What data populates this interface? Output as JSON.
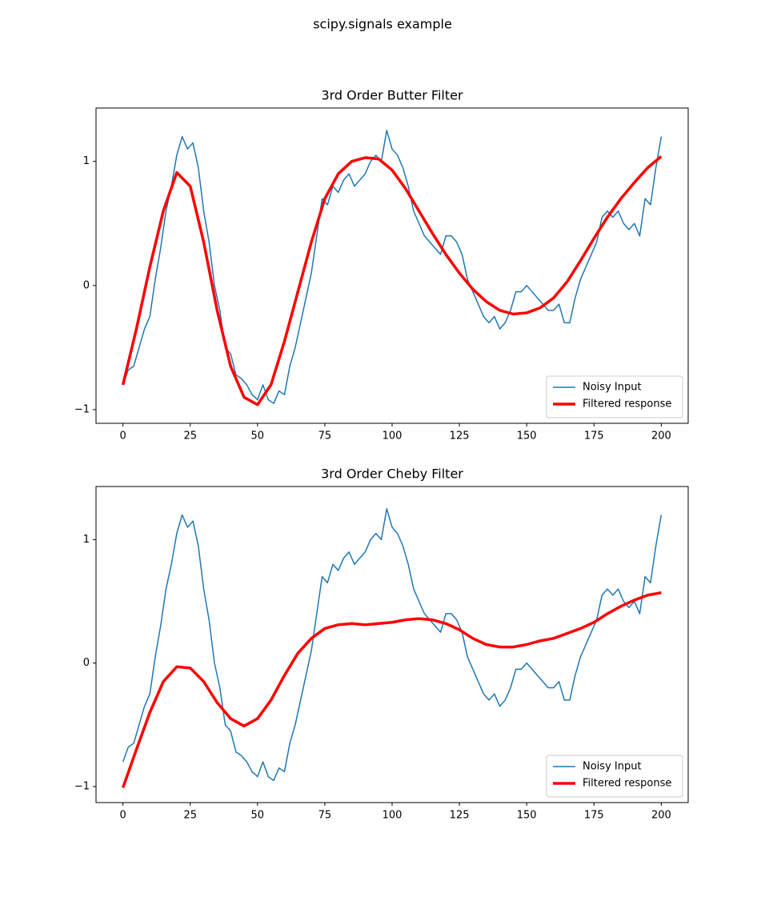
{
  "title": "scipy.signals example",
  "chart_data": [
    {
      "type": "line",
      "title": "3rd Order Butter Filter",
      "legend": "lower right",
      "xlim": [
        -10,
        210
      ],
      "ylim": [
        -1.11,
        1.43
      ],
      "xticks": [
        0,
        25,
        50,
        75,
        100,
        125,
        150,
        175,
        200
      ],
      "yticks": [
        {
          "value": -1,
          "label": "−1"
        },
        0,
        1
      ],
      "series": [
        {
          "name": "Noisy Input",
          "color": "#1f77b4",
          "width": 1.5,
          "x": [
            0,
            2,
            4,
            6,
            8,
            10,
            12,
            14,
            16,
            18,
            20,
            22,
            24,
            26,
            28,
            30,
            32,
            34,
            36,
            38,
            40,
            42,
            44,
            46,
            48,
            50,
            52,
            54,
            56,
            58,
            60,
            62,
            64,
            66,
            68,
            70,
            72,
            74,
            76,
            78,
            80,
            82,
            84,
            86,
            88,
            90,
            92,
            94,
            96,
            98,
            100,
            102,
            104,
            106,
            108,
            110,
            112,
            114,
            116,
            118,
            120,
            122,
            124,
            126,
            128,
            130,
            132,
            134,
            136,
            138,
            140,
            142,
            144,
            146,
            148,
            150,
            152,
            154,
            156,
            158,
            160,
            162,
            164,
            166,
            168,
            170,
            172,
            174,
            176,
            178,
            180,
            182,
            184,
            186,
            188,
            190,
            192,
            194,
            196,
            198,
            200
          ],
          "values": [
            -0.8,
            -0.68,
            -0.65,
            -0.5,
            -0.35,
            -0.25,
            0.05,
            0.3,
            0.6,
            0.8,
            1.05,
            1.2,
            1.1,
            1.15,
            0.95,
            0.6,
            0.35,
            0.0,
            -0.2,
            -0.5,
            -0.55,
            -0.72,
            -0.75,
            -0.8,
            -0.88,
            -0.92,
            -0.8,
            -0.92,
            -0.95,
            -0.85,
            -0.88,
            -0.65,
            -0.5,
            -0.3,
            -0.1,
            0.1,
            0.4,
            0.7,
            0.65,
            0.8,
            0.75,
            0.85,
            0.9,
            0.8,
            0.85,
            0.9,
            1.0,
            1.05,
            1.0,
            1.25,
            1.1,
            1.05,
            0.95,
            0.8,
            0.6,
            0.5,
            0.4,
            0.35,
            0.3,
            0.25,
            0.4,
            0.4,
            0.35,
            0.25,
            0.05,
            -0.05,
            -0.15,
            -0.25,
            -0.3,
            -0.25,
            -0.35,
            -0.3,
            -0.2,
            -0.05,
            -0.05,
            0.0,
            -0.05,
            -0.1,
            -0.15,
            -0.2,
            -0.2,
            -0.15,
            -0.3,
            -0.3,
            -0.1,
            0.05,
            0.15,
            0.25,
            0.35,
            0.55,
            0.6,
            0.55,
            0.6,
            0.5,
            0.45,
            0.5,
            0.4,
            0.7,
            0.65,
            0.95,
            1.2
          ]
        },
        {
          "name": "Filtered response",
          "color": "#ff0000",
          "width": 3.5,
          "x": [
            0,
            5,
            10,
            15,
            20,
            25,
            30,
            35,
            40,
            45,
            50,
            55,
            60,
            65,
            70,
            75,
            80,
            85,
            90,
            95,
            100,
            105,
            110,
            115,
            120,
            125,
            130,
            135,
            140,
            145,
            150,
            155,
            160,
            165,
            170,
            175,
            180,
            185,
            190,
            195,
            200
          ],
          "values": [
            -0.8,
            -0.35,
            0.15,
            0.6,
            0.91,
            0.8,
            0.35,
            -0.2,
            -0.65,
            -0.9,
            -0.96,
            -0.8,
            -0.45,
            -0.05,
            0.35,
            0.7,
            0.9,
            1.0,
            1.03,
            1.02,
            0.93,
            0.78,
            0.6,
            0.42,
            0.25,
            0.1,
            -0.03,
            -0.13,
            -0.2,
            -0.23,
            -0.22,
            -0.18,
            -0.1,
            0.03,
            0.2,
            0.38,
            0.55,
            0.7,
            0.83,
            0.95,
            1.04
          ]
        }
      ]
    },
    {
      "type": "line",
      "title": "3rd Order Cheby Filter",
      "legend": "lower right",
      "xlim": [
        -10,
        210
      ],
      "ylim": [
        -1.13,
        1.43
      ],
      "xticks": [
        0,
        25,
        50,
        75,
        100,
        125,
        150,
        175,
        200
      ],
      "yticks": [
        {
          "value": -1,
          "label": "−1"
        },
        0,
        1
      ],
      "series": [
        {
          "name": "Noisy Input",
          "color": "#1f77b4",
          "width": 1.5,
          "x": [
            0,
            2,
            4,
            6,
            8,
            10,
            12,
            14,
            16,
            18,
            20,
            22,
            24,
            26,
            28,
            30,
            32,
            34,
            36,
            38,
            40,
            42,
            44,
            46,
            48,
            50,
            52,
            54,
            56,
            58,
            60,
            62,
            64,
            66,
            68,
            70,
            72,
            74,
            76,
            78,
            80,
            82,
            84,
            86,
            88,
            90,
            92,
            94,
            96,
            98,
            100,
            102,
            104,
            106,
            108,
            110,
            112,
            114,
            116,
            118,
            120,
            122,
            124,
            126,
            128,
            130,
            132,
            134,
            136,
            138,
            140,
            142,
            144,
            146,
            148,
            150,
            152,
            154,
            156,
            158,
            160,
            162,
            164,
            166,
            168,
            170,
            172,
            174,
            176,
            178,
            180,
            182,
            184,
            186,
            188,
            190,
            192,
            194,
            196,
            198,
            200
          ],
          "values": [
            -0.8,
            -0.68,
            -0.65,
            -0.5,
            -0.35,
            -0.25,
            0.05,
            0.3,
            0.6,
            0.8,
            1.05,
            1.2,
            1.1,
            1.15,
            0.95,
            0.6,
            0.35,
            0.0,
            -0.2,
            -0.5,
            -0.55,
            -0.72,
            -0.75,
            -0.8,
            -0.88,
            -0.92,
            -0.8,
            -0.92,
            -0.95,
            -0.85,
            -0.88,
            -0.65,
            -0.5,
            -0.3,
            -0.1,
            0.1,
            0.4,
            0.7,
            0.65,
            0.8,
            0.75,
            0.85,
            0.9,
            0.8,
            0.85,
            0.9,
            1.0,
            1.05,
            1.0,
            1.25,
            1.1,
            1.05,
            0.95,
            0.8,
            0.6,
            0.5,
            0.4,
            0.35,
            0.3,
            0.25,
            0.4,
            0.4,
            0.35,
            0.25,
            0.05,
            -0.05,
            -0.15,
            -0.25,
            -0.3,
            -0.25,
            -0.35,
            -0.3,
            -0.2,
            -0.05,
            -0.05,
            0.0,
            -0.05,
            -0.1,
            -0.15,
            -0.2,
            -0.2,
            -0.15,
            -0.3,
            -0.3,
            -0.1,
            0.05,
            0.15,
            0.25,
            0.35,
            0.55,
            0.6,
            0.55,
            0.6,
            0.5,
            0.45,
            0.5,
            0.4,
            0.7,
            0.65,
            0.95,
            1.2
          ]
        },
        {
          "name": "Filtered response",
          "color": "#ff0000",
          "width": 3.5,
          "x": [
            0,
            5,
            10,
            15,
            20,
            25,
            30,
            35,
            40,
            45,
            50,
            55,
            60,
            65,
            70,
            75,
            80,
            85,
            90,
            95,
            100,
            105,
            110,
            115,
            120,
            125,
            130,
            135,
            140,
            145,
            150,
            155,
            160,
            165,
            170,
            175,
            180,
            185,
            190,
            195,
            200
          ],
          "values": [
            -1.01,
            -0.7,
            -0.4,
            -0.15,
            -0.03,
            -0.04,
            -0.15,
            -0.32,
            -0.45,
            -0.51,
            -0.45,
            -0.3,
            -0.1,
            0.08,
            0.2,
            0.28,
            0.31,
            0.32,
            0.31,
            0.32,
            0.33,
            0.35,
            0.36,
            0.35,
            0.32,
            0.27,
            0.2,
            0.15,
            0.13,
            0.13,
            0.15,
            0.18,
            0.2,
            0.24,
            0.28,
            0.33,
            0.4,
            0.46,
            0.51,
            0.55,
            0.57
          ]
        }
      ]
    }
  ]
}
